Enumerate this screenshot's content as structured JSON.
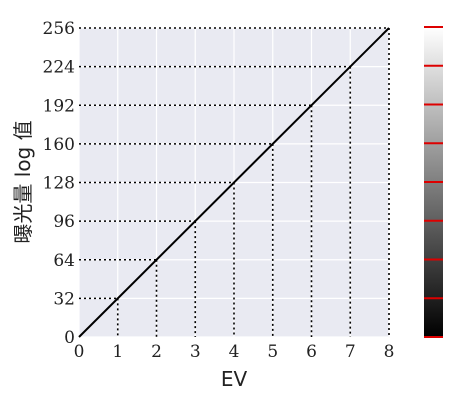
{
  "chart_data": {
    "type": "line",
    "xlabel": "EV",
    "ylabel": "曝光量 log 值",
    "xlim": [
      0,
      8
    ],
    "ylim": [
      0,
      256
    ],
    "x_ticks": [
      "0",
      "1",
      "2",
      "3",
      "4",
      "5",
      "6",
      "7",
      "8"
    ],
    "y_ticks": [
      "0",
      "32",
      "64",
      "96",
      "128",
      "160",
      "192",
      "224",
      "256"
    ],
    "grid": true,
    "series": [
      {
        "x": [
          0,
          8
        ],
        "y": [
          0,
          256
        ]
      }
    ],
    "guide_points": [
      {
        "x": 1,
        "y": 32
      },
      {
        "x": 2,
        "y": 64
      },
      {
        "x": 3,
        "y": 96
      },
      {
        "x": 4,
        "y": 128
      },
      {
        "x": 5,
        "y": 160
      },
      {
        "x": 6,
        "y": 192
      },
      {
        "x": 7,
        "y": 224
      },
      {
        "x": 8,
        "y": 256
      }
    ],
    "colorbar": {
      "gradient_from": "#000000",
      "gradient_to": "#ffffff",
      "marker_values": [
        0,
        32,
        64,
        96,
        128,
        160,
        192,
        224,
        256
      ],
      "marker_color": "#dd0000"
    },
    "colors": {
      "plot_background": "#e9eaf2",
      "grid": "#ffffff",
      "line": "#000000"
    }
  }
}
